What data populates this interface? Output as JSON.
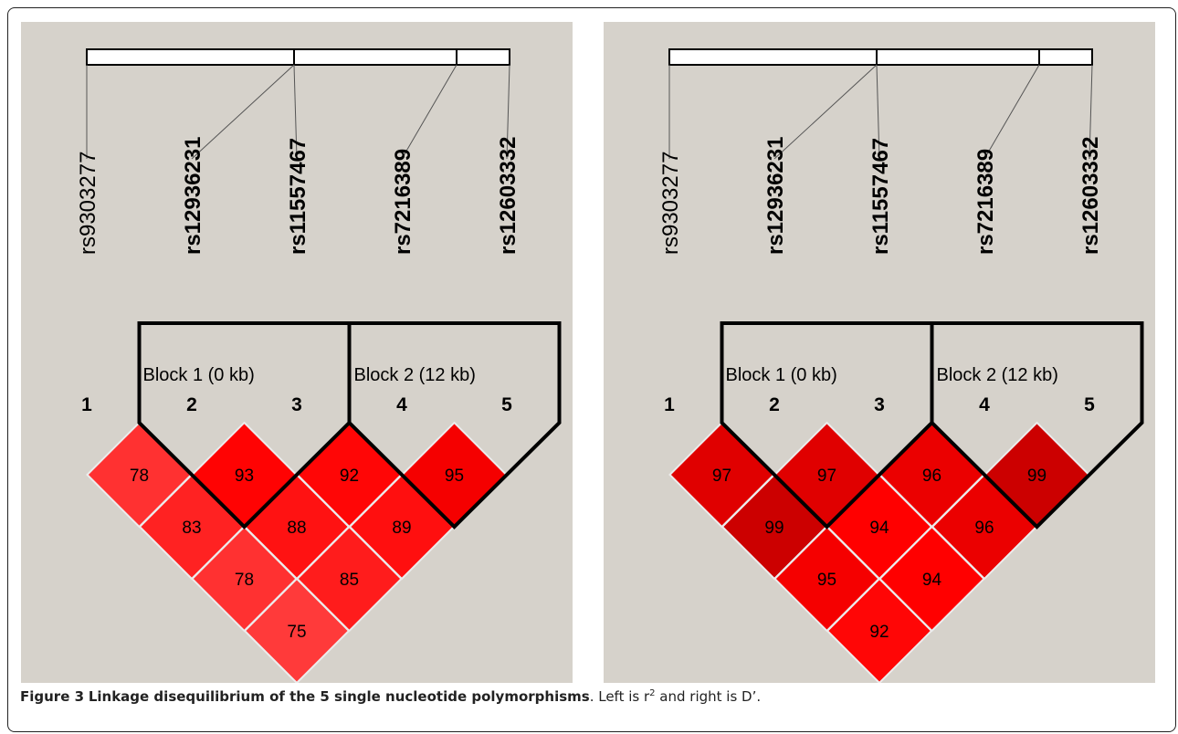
{
  "figure": {
    "caption_label": "Figure 3",
    "caption_title": "Linkage disequilibrium of the 5 single nucleotide polymorphisms",
    "caption_text_pre": ". Left is r",
    "caption_sup": "2",
    "caption_text_post": " and right is D’."
  },
  "panels": [
    {
      "snps": [
        "rs9303277",
        "rs12936231",
        "rs11557467",
        "rs7216389",
        "rs12603332"
      ],
      "snp_bold": [
        false,
        true,
        true,
        true,
        true
      ],
      "marker_numbers": [
        "1",
        "2",
        "3",
        "4",
        "5"
      ],
      "blocks": [
        "Block 1 (0 kb)",
        "Block 2 (12 kb)"
      ],
      "ld_rows": [
        [
          "78",
          "93",
          "92",
          "95"
        ],
        [
          "83",
          "88",
          "89"
        ],
        [
          "78",
          "85"
        ],
        [
          "75"
        ]
      ],
      "ld_numeric": [
        [
          78,
          93,
          92,
          95
        ],
        [
          83,
          88,
          89
        ],
        [
          78,
          85
        ],
        [
          75
        ]
      ],
      "cell_color": "#ff0000"
    },
    {
      "snps": [
        "rs9303277",
        "rs12936231",
        "rs11557467",
        "rs7216389",
        "rs12603332"
      ],
      "snp_bold": [
        false,
        true,
        true,
        true,
        true
      ],
      "marker_numbers": [
        "1",
        "2",
        "3",
        "4",
        "5"
      ],
      "blocks": [
        "Block 1 (0 kb)",
        "Block 2 (12 kb)"
      ],
      "ld_rows": [
        [
          "97",
          "97",
          "96",
          "99"
        ],
        [
          "99",
          "94",
          "96"
        ],
        [
          "95",
          "94"
        ],
        [
          "92"
        ]
      ],
      "ld_numeric": [
        [
          97,
          97,
          96,
          99
        ],
        [
          99,
          94,
          96
        ],
        [
          95,
          94
        ],
        [
          92
        ]
      ],
      "cell_color": "#ff0000"
    }
  ]
}
